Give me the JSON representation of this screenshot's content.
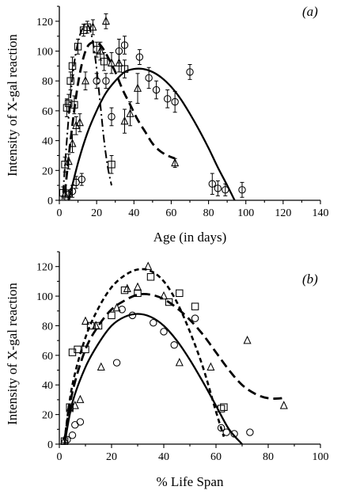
{
  "chart_data": [
    {
      "panel_label": "(a)",
      "type": "scatter",
      "xlabel": "Age (in days)",
      "ylabel": "Intensity of X-gal reaction",
      "xlim": [
        0,
        140
      ],
      "ylim": [
        0,
        130
      ],
      "xticks": [
        "0",
        "20",
        "40",
        "60",
        "80",
        "100",
        "120",
        "140"
      ],
      "yticks": [
        "0",
        "20",
        "40",
        "60",
        "80",
        "100",
        "120"
      ],
      "series": [
        {
          "marker": "square",
          "points": [
            [
              2,
              5
            ],
            [
              3,
              24
            ],
            [
              4,
              62
            ],
            [
              5,
              65
            ],
            [
              6,
              80
            ],
            [
              7,
              90
            ],
            [
              8,
              64
            ],
            [
              10,
              103
            ],
            [
              13,
              114
            ],
            [
              15,
              116
            ],
            [
              20,
              101
            ],
            [
              24,
              93
            ],
            [
              28,
              24
            ],
            [
              35,
              88
            ]
          ],
          "errors": [
            4,
            5,
            6,
            6,
            6,
            6,
            6,
            5,
            4,
            4,
            5,
            6,
            6,
            6
          ]
        },
        {
          "marker": "triangle",
          "points": [
            [
              3,
              4
            ],
            [
              5,
              26
            ],
            [
              7,
              38
            ],
            [
              9,
              50
            ],
            [
              11,
              52
            ],
            [
              14,
              80
            ],
            [
              18,
              116
            ],
            [
              22,
              100
            ],
            [
              25,
              120
            ],
            [
              28,
              92
            ],
            [
              32,
              92
            ],
            [
              35,
              53
            ],
            [
              38,
              58
            ],
            [
              42,
              75
            ],
            [
              62,
              25
            ]
          ],
          "errors": [
            4,
            5,
            6,
            6,
            6,
            6,
            5,
            6,
            5,
            7,
            6,
            8,
            8,
            10,
            3
          ]
        },
        {
          "marker": "circle",
          "points": [
            [
              5,
              4
            ],
            [
              7,
              6
            ],
            [
              9,
              12
            ],
            [
              12,
              14
            ],
            [
              20,
              80
            ],
            [
              25,
              80
            ],
            [
              28,
              56
            ],
            [
              32,
              100
            ],
            [
              35,
              104
            ],
            [
              43,
              96
            ],
            [
              48,
              82
            ],
            [
              52,
              74
            ],
            [
              58,
              68
            ],
            [
              62,
              66
            ],
            [
              70,
              86
            ],
            [
              82,
              11
            ],
            [
              85,
              8
            ],
            [
              89,
              7
            ],
            [
              98,
              7
            ]
          ],
          "errors": [
            3,
            4,
            4,
            4,
            5,
            5,
            6,
            8,
            6,
            5,
            7,
            6,
            6,
            7,
            5,
            7,
            5,
            4,
            5
          ]
        }
      ],
      "fits": [
        {
          "style": "dash-dot",
          "x": [
            2,
            4,
            6,
            8,
            10,
            12,
            14,
            16,
            18,
            20,
            22,
            24,
            26,
            28
          ],
          "y": [
            5,
            40,
            70,
            92,
            106,
            114,
            118,
            116,
            106,
            88,
            64,
            40,
            22,
            10
          ]
        },
        {
          "style": "dashed",
          "x": [
            3,
            6,
            10,
            14,
            18,
            22,
            26,
            30,
            34,
            38,
            42,
            46,
            50,
            54,
            58,
            62
          ],
          "y": [
            5,
            40,
            78,
            100,
            106,
            104,
            96,
            86,
            74,
            64,
            54,
            46,
            38,
            33,
            30,
            28
          ]
        },
        {
          "style": "solid",
          "x": [
            5,
            10,
            15,
            20,
            25,
            30,
            35,
            40,
            45,
            50,
            55,
            60,
            65,
            70,
            75,
            80,
            85,
            90,
            94
          ],
          "y": [
            0,
            25,
            45,
            60,
            72,
            80,
            86,
            88,
            88,
            86,
            82,
            76,
            68,
            58,
            47,
            35,
            22,
            10,
            0
          ]
        }
      ]
    },
    {
      "panel_label": "(b)",
      "type": "scatter",
      "xlabel": "% Life Span",
      "ylabel": "Intensity of X-gal reaction",
      "xlim": [
        0,
        100
      ],
      "ylim": [
        0,
        130
      ],
      "xticks": [
        "0",
        "20",
        "40",
        "60",
        "80",
        "100"
      ],
      "yticks": [
        "0",
        "20",
        "40",
        "60",
        "80",
        "100",
        "120"
      ],
      "series": [
        {
          "marker": "square",
          "points": [
            [
              2,
              2
            ],
            [
              4,
              25
            ],
            [
              5,
              62
            ],
            [
              7,
              64
            ],
            [
              10,
              64
            ],
            [
              12,
              80
            ],
            [
              15,
              80
            ],
            [
              20,
              87
            ],
            [
              25,
              104
            ],
            [
              30,
              102
            ],
            [
              35,
              113
            ],
            [
              42,
              96
            ],
            [
              46,
              102
            ],
            [
              52,
              93
            ],
            [
              62,
              24
            ],
            [
              63,
              25
            ]
          ]
        },
        {
          "marker": "triangle",
          "points": [
            [
              2,
              3
            ],
            [
              4,
              24
            ],
            [
              6,
              26
            ],
            [
              8,
              30
            ],
            [
              10,
              83
            ],
            [
              14,
              80
            ],
            [
              16,
              52
            ],
            [
              22,
              92
            ],
            [
              26,
              105
            ],
            [
              30,
              106
            ],
            [
              34,
              120
            ],
            [
              40,
              100
            ],
            [
              46,
              55
            ],
            [
              58,
              52
            ],
            [
              72,
              70
            ],
            [
              86,
              26
            ]
          ]
        },
        {
          "marker": "circle",
          "points": [
            [
              3,
              3
            ],
            [
              5,
              6
            ],
            [
              6,
              13
            ],
            [
              8,
              15
            ],
            [
              22,
              55
            ],
            [
              24,
              91
            ],
            [
              28,
              87
            ],
            [
              36,
              82
            ],
            [
              40,
              76
            ],
            [
              44,
              67
            ],
            [
              52,
              85
            ],
            [
              62,
              11
            ],
            [
              64,
              8
            ],
            [
              67,
              7
            ],
            [
              73,
              8
            ]
          ]
        }
      ],
      "fits": [
        {
          "style": "dashed-short",
          "x": [
            2,
            5,
            10,
            15,
            20,
            25,
            30,
            35,
            40,
            45,
            50,
            55,
            60,
            63
          ],
          "y": [
            3,
            40,
            72,
            92,
            106,
            114,
            118,
            117,
            110,
            96,
            76,
            52,
            22,
            5
          ]
        },
        {
          "style": "dashed",
          "x": [
            2,
            5,
            10,
            15,
            20,
            25,
            30,
            35,
            40,
            45,
            50,
            55,
            60,
            65,
            70,
            75,
            80,
            85,
            87
          ],
          "y": [
            3,
            35,
            64,
            80,
            91,
            97,
            101,
            101,
            98,
            92,
            84,
            74,
            62,
            50,
            40,
            34,
            31,
            31,
            32
          ]
        },
        {
          "style": "solid",
          "x": [
            2,
            5,
            10,
            15,
            20,
            25,
            30,
            35,
            40,
            45,
            50,
            55,
            60,
            65,
            70
          ],
          "y": [
            0,
            28,
            52,
            68,
            80,
            86,
            88,
            86,
            80,
            70,
            57,
            42,
            26,
            10,
            0
          ]
        }
      ]
    }
  ]
}
